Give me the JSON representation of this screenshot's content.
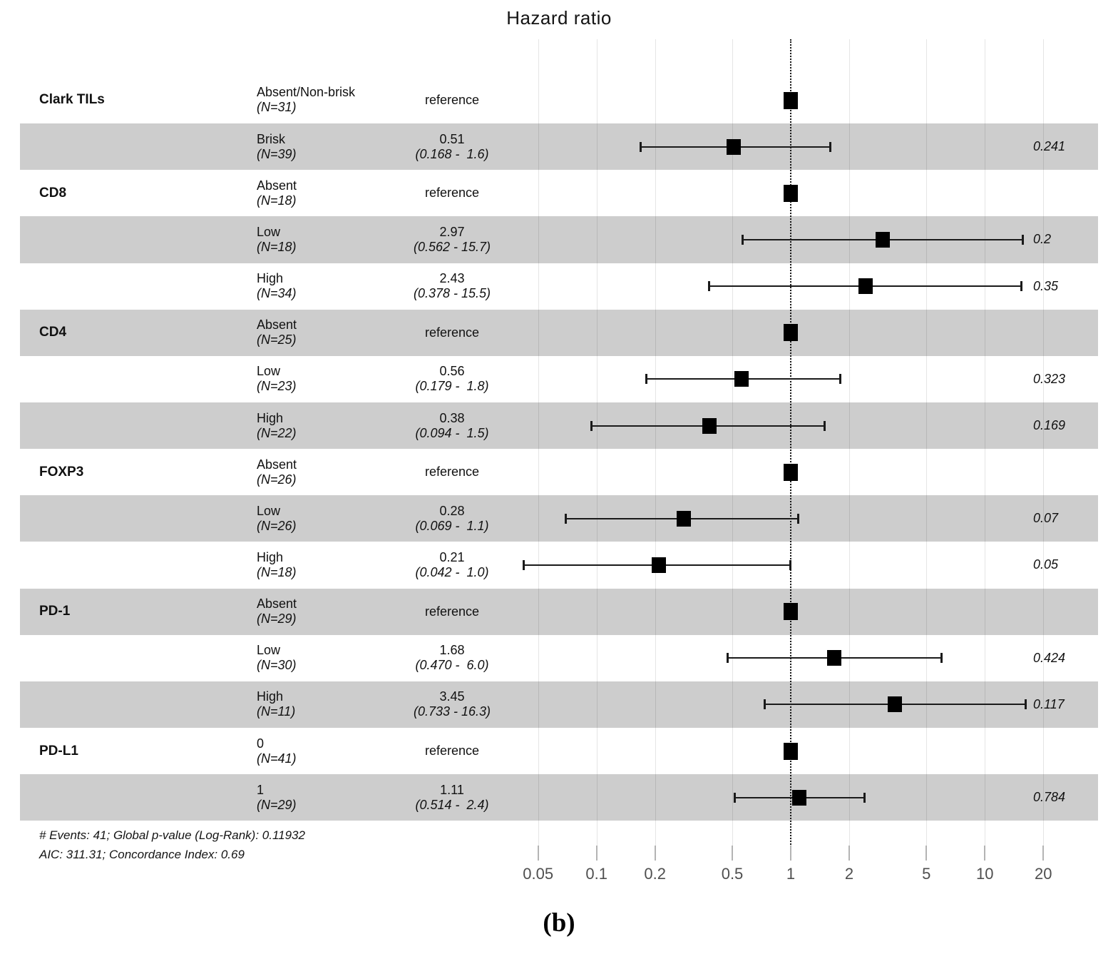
{
  "title": "Hazard ratio",
  "caption": "(b)",
  "colors": {
    "band": "#cdcdcd",
    "marker": "#000000",
    "reference_line": "#1a1a1a",
    "gridline": "#e6e6e6",
    "axis_label": "#4f4f4f"
  },
  "chart_data": {
    "type": "scatter",
    "subtype": "forest-plot",
    "title": "Hazard ratio",
    "x_scale": "log10",
    "x_ticks": [
      "0.05",
      "0.1",
      "0.2",
      "0.5",
      "1",
      "2",
      "5",
      "10",
      "20"
    ],
    "x_tick_values": [
      0.05,
      0.1,
      0.2,
      0.5,
      1,
      2,
      5,
      10,
      20
    ],
    "xlim": [
      0.04,
      23
    ],
    "reference_line_x": 1,
    "reference_label": "reference",
    "legend": "none",
    "grid": "vertical-only",
    "groups": [
      {
        "variable": "Clark TILs",
        "levels": [
          {
            "label": "Absent/Non-brisk",
            "n": "(N=31)",
            "reference": true,
            "hr": 1
          },
          {
            "label": "Brisk",
            "n": "(N=39)",
            "estimate": "0.51",
            "ci": "(0.168 -  1.6)",
            "hr": 0.51,
            "lo": 0.168,
            "hi": 1.6,
            "p": "0.241"
          }
        ]
      },
      {
        "variable": "CD8",
        "levels": [
          {
            "label": "Absent",
            "n": "(N=18)",
            "reference": true,
            "hr": 1
          },
          {
            "label": "Low",
            "n": "(N=18)",
            "estimate": "2.97",
            "ci": "(0.562 - 15.7)",
            "hr": 2.97,
            "lo": 0.562,
            "hi": 15.7,
            "p": "0.2"
          },
          {
            "label": "High",
            "n": "(N=34)",
            "estimate": "2.43",
            "ci": "(0.378 - 15.5)",
            "hr": 2.43,
            "lo": 0.378,
            "hi": 15.5,
            "p": "0.35"
          }
        ]
      },
      {
        "variable": "CD4",
        "levels": [
          {
            "label": "Absent",
            "n": "(N=25)",
            "reference": true,
            "hr": 1
          },
          {
            "label": "Low",
            "n": "(N=23)",
            "estimate": "0.56",
            "ci": "(0.179 -  1.8)",
            "hr": 0.56,
            "lo": 0.179,
            "hi": 1.8,
            "p": "0.323"
          },
          {
            "label": "High",
            "n": "(N=22)",
            "estimate": "0.38",
            "ci": "(0.094 -  1.5)",
            "hr": 0.38,
            "lo": 0.094,
            "hi": 1.5,
            "p": "0.169"
          }
        ]
      },
      {
        "variable": "FOXP3",
        "levels": [
          {
            "label": "Absent",
            "n": "(N=26)",
            "reference": true,
            "hr": 1
          },
          {
            "label": "Low",
            "n": "(N=26)",
            "estimate": "0.28",
            "ci": "(0.069 -  1.1)",
            "hr": 0.28,
            "lo": 0.069,
            "hi": 1.1,
            "p": "0.07"
          },
          {
            "label": "High",
            "n": "(N=18)",
            "estimate": "0.21",
            "ci": "(0.042 -  1.0)",
            "hr": 0.21,
            "lo": 0.042,
            "hi": 1.0,
            "p": "0.05"
          }
        ]
      },
      {
        "variable": "PD-1",
        "levels": [
          {
            "label": "Absent",
            "n": "(N=29)",
            "reference": true,
            "hr": 1
          },
          {
            "label": "Low",
            "n": "(N=30)",
            "estimate": "1.68",
            "ci": "(0.470 -  6.0)",
            "hr": 1.68,
            "lo": 0.47,
            "hi": 6.0,
            "p": "0.424"
          },
          {
            "label": "High",
            "n": "(N=11)",
            "estimate": "3.45",
            "ci": "(0.733 - 16.3)",
            "hr": 3.45,
            "lo": 0.733,
            "hi": 16.3,
            "p": "0.117"
          }
        ]
      },
      {
        "variable": "PD-L1",
        "levels": [
          {
            "label": "0",
            "n": "(N=41)",
            "reference": true,
            "hr": 1
          },
          {
            "label": "1",
            "n": "(N=29)",
            "estimate": "1.11",
            "ci": "(0.514 -  2.4)",
            "hr": 1.11,
            "lo": 0.514,
            "hi": 2.4,
            "p": "0.784"
          }
        ]
      }
    ],
    "footnotes": [
      "# Events: 41; Global p-value (Log-Rank): 0.11932",
      "AIC: 311.31; Concordance Index: 0.69"
    ]
  }
}
